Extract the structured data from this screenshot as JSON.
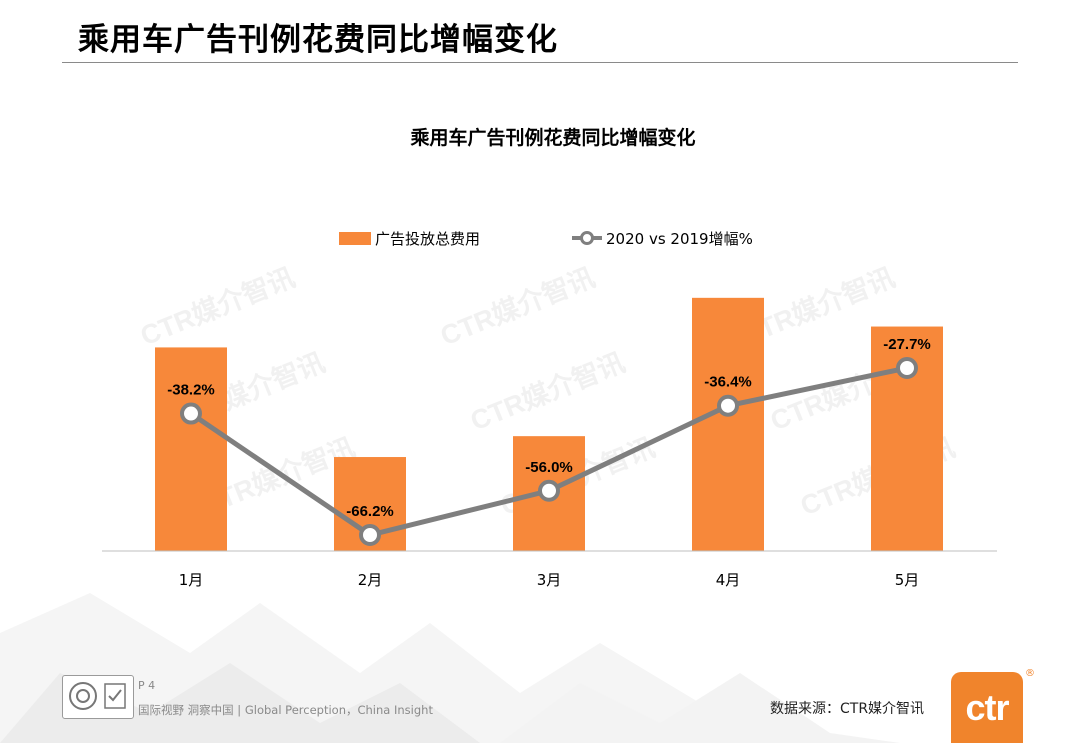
{
  "page": {
    "title": "乘用车广告刊例花费同比增幅变化",
    "page_number": "P 4",
    "slogan": "国际视野  洞察中国 |  Global Perception，China Insight",
    "source": "数据来源：CTR媒介智讯",
    "brand_logo_text": "ctr",
    "watermark_text": "CTR媒介智讯"
  },
  "colors": {
    "bar": "#f7883a",
    "line": "#7f7f7f",
    "marker_fill": "#ffffff",
    "accent": "#f0842c"
  },
  "chart_data": {
    "type": "bar",
    "title": "乘用车广告刊例花费同比增幅变化",
    "categories": [
      "1月",
      "2月",
      "3月",
      "4月",
      "5月"
    ],
    "series": [
      {
        "name": "广告投放总费用",
        "type": "bar",
        "relative_values": [
          0.78,
          0.36,
          0.44,
          0.97,
          0.86
        ]
      },
      {
        "name": "2020 vs 2019增幅%",
        "type": "line",
        "values": [
          -38.2,
          -66.2,
          -56.0,
          -36.4,
          -27.7
        ],
        "labels": [
          "-38.2%",
          "-66.2%",
          "-56.0%",
          "-36.4%",
          "-27.7%"
        ]
      }
    ],
    "legend_position": "top-center",
    "grid": false
  }
}
